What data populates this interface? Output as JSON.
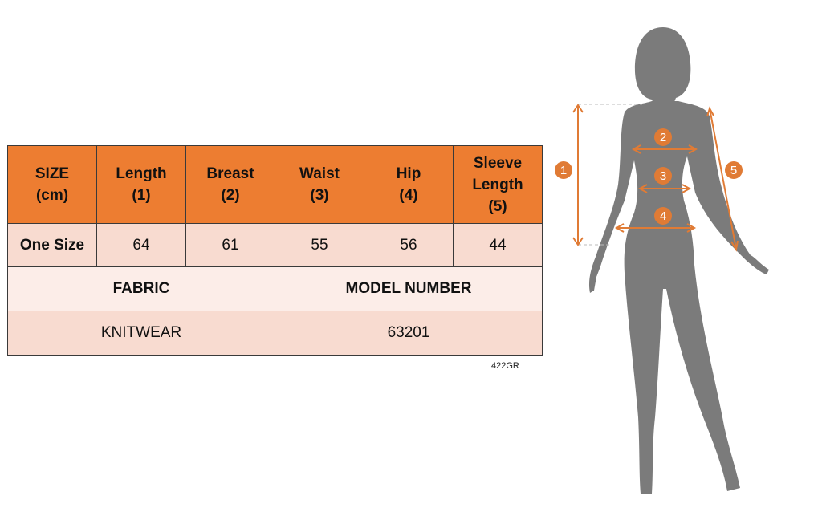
{
  "table": {
    "headers": [
      "SIZE\n(cm)",
      "Length\n(1)",
      "Breast\n(2)",
      "Waist\n(3)",
      "Hip\n(4)",
      "Sleeve\nLength\n(5)"
    ],
    "row": [
      "One Size",
      "64",
      "61",
      "55",
      "56",
      "44"
    ],
    "fabric_label": "FABRIC",
    "model_label": "MODEL NUMBER",
    "fabric_value": "KNITWEAR",
    "model_value": "63201"
  },
  "product_code": "422GR",
  "figure": {
    "markers": [
      "1",
      "2",
      "3",
      "4",
      "5"
    ],
    "accent_color": "#E07B35",
    "silhouette_color": "#7B7B7B"
  }
}
